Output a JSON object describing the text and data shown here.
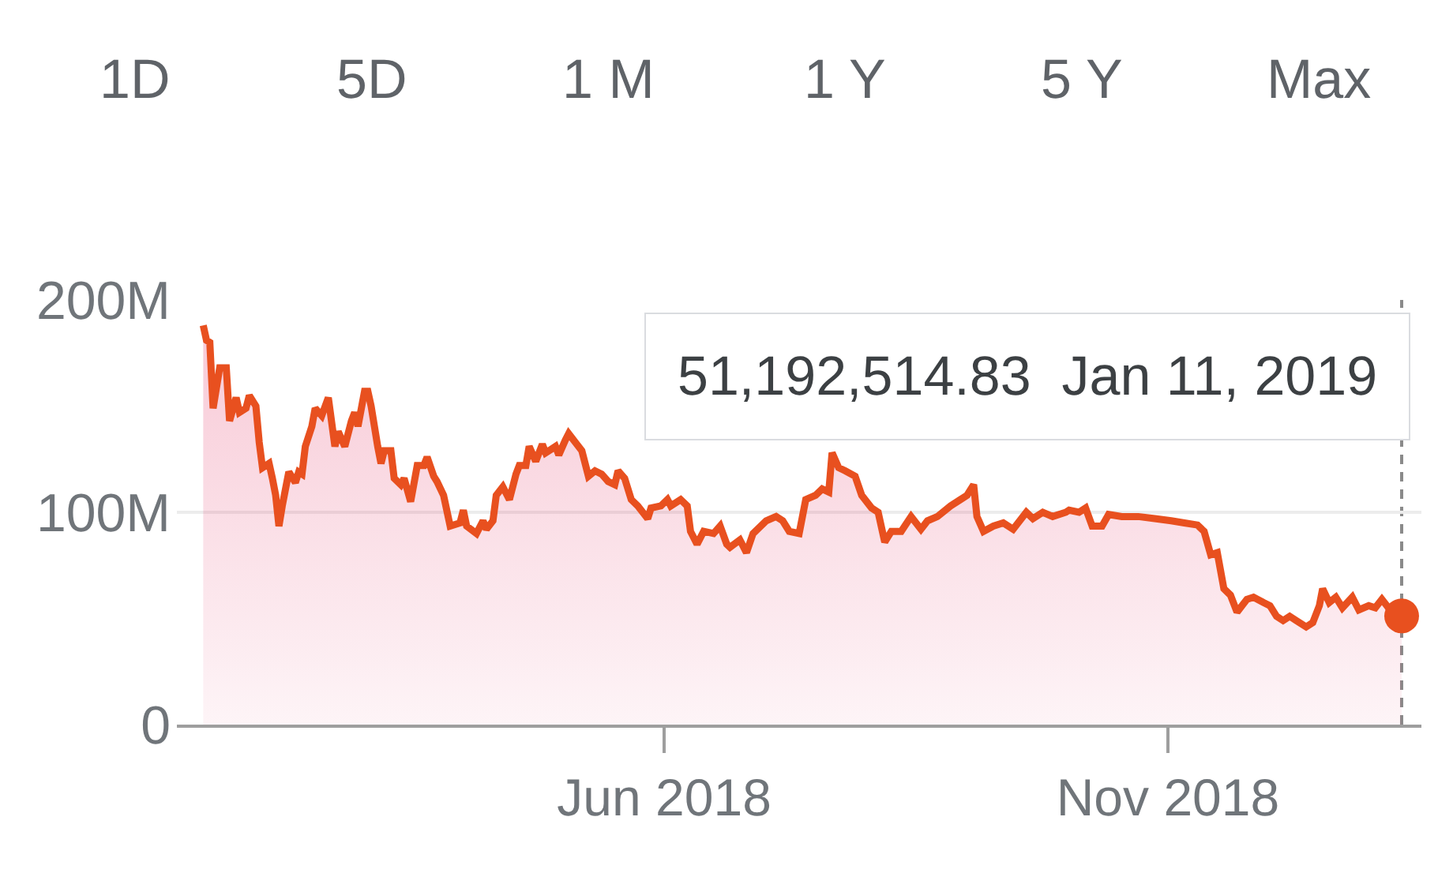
{
  "chart_data": {
    "type": "area",
    "x": [
      "2018-01-12",
      "2018-01-13",
      "2018-01-14",
      "2018-01-15",
      "2018-01-17",
      "2018-01-19",
      "2018-01-20",
      "2018-01-22",
      "2018-01-23",
      "2018-01-25",
      "2018-01-26",
      "2018-01-28",
      "2018-01-29",
      "2018-01-30",
      "2018-02-01",
      "2018-02-02",
      "2018-02-03",
      "2018-02-04",
      "2018-02-05",
      "2018-02-06",
      "2018-02-07",
      "2018-02-09",
      "2018-02-10",
      "2018-02-11",
      "2018-02-12",
      "2018-02-14",
      "2018-02-15",
      "2018-02-17",
      "2018-02-19",
      "2018-02-21",
      "2018-02-22",
      "2018-02-24",
      "2018-02-26",
      "2018-02-27",
      "2018-02-28",
      "2018-03-02",
      "2018-03-03",
      "2018-03-04",
      "2018-03-06",
      "2018-03-07",
      "2018-03-08",
      "2018-03-10",
      "2018-03-11",
      "2018-03-13",
      "2018-03-14",
      "2018-03-16",
      "2018-03-18",
      "2018-03-20",
      "2018-03-21",
      "2018-03-23",
      "2018-03-24",
      "2018-03-26",
      "2018-03-28",
      "2018-03-31",
      "2018-04-01",
      "2018-04-02",
      "2018-04-05",
      "2018-04-07",
      "2018-04-08",
      "2018-04-10",
      "2018-04-11",
      "2018-04-13",
      "2018-04-15",
      "2018-04-17",
      "2018-04-18",
      "2018-04-20",
      "2018-04-21",
      "2018-04-23",
      "2018-04-25",
      "2018-04-26",
      "2018-04-29",
      "2018-04-30",
      "2018-05-02",
      "2018-05-03",
      "2018-05-05",
      "2018-05-07",
      "2018-05-09",
      "2018-05-11",
      "2018-05-13",
      "2018-05-15",
      "2018-05-17",
      "2018-05-18",
      "2018-05-20",
      "2018-05-22",
      "2018-05-24",
      "2018-05-27",
      "2018-05-28",
      "2018-05-31",
      "2018-06-02",
      "2018-06-03",
      "2018-06-06",
      "2018-06-08",
      "2018-06-09",
      "2018-06-11",
      "2018-06-13",
      "2018-06-16",
      "2018-06-18",
      "2018-06-20",
      "2018-06-21",
      "2018-06-24",
      "2018-06-26",
      "2018-06-28",
      "2018-07-02",
      "2018-07-05",
      "2018-07-07",
      "2018-07-09",
      "2018-07-12",
      "2018-07-14",
      "2018-07-17",
      "2018-07-19",
      "2018-07-21",
      "2018-07-22",
      "2018-07-24",
      "2018-07-26",
      "2018-07-29",
      "2018-07-31",
      "2018-08-03",
      "2018-08-05",
      "2018-08-07",
      "2018-08-09",
      "2018-08-12",
      "2018-08-15",
      "2018-08-18",
      "2018-08-20",
      "2018-08-23",
      "2018-08-27",
      "2018-08-30",
      "2018-09-01",
      "2018-09-03",
      "2018-09-04",
      "2018-09-06",
      "2018-09-09",
      "2018-09-12",
      "2018-09-15",
      "2018-09-19",
      "2018-09-21",
      "2018-09-24",
      "2018-09-27",
      "2018-10-01",
      "2018-10-02",
      "2018-10-05",
      "2018-10-07",
      "2018-10-09",
      "2018-10-12",
      "2018-10-14",
      "2018-10-18",
      "2018-10-23",
      "2018-10-28",
      "2018-11-02",
      "2018-11-06",
      "2018-11-10",
      "2018-11-12",
      "2018-11-14",
      "2018-11-16",
      "2018-11-18",
      "2018-11-20",
      "2018-11-22",
      "2018-11-25",
      "2018-11-27",
      "2018-11-30",
      "2018-12-02",
      "2018-12-04",
      "2018-12-06",
      "2018-12-08",
      "2018-12-10",
      "2018-12-13",
      "2018-12-15",
      "2018-12-17",
      "2018-12-18",
      "2018-12-20",
      "2018-12-22",
      "2018-12-24",
      "2018-12-27",
      "2018-12-29",
      "2019-01-01",
      "2019-01-03",
      "2019-01-05",
      "2019-01-07",
      "2019-01-11"
    ],
    "series": [
      {
        "color": "#e8501f",
        "values": [
          188000000,
          181000000,
          180000000,
          149000000,
          168000000,
          168000000,
          143000000,
          154000000,
          147000000,
          149000000,
          155000000,
          150000000,
          133000000,
          121000000,
          123000000,
          116000000,
          108000000,
          93500000,
          103000000,
          111000000,
          119000000,
          114000000,
          119000000,
          118000000,
          131000000,
          140500000,
          149000000,
          145500000,
          154000000,
          131000000,
          138000000,
          131000000,
          143000000,
          147000000,
          140500000,
          157000000,
          157000000,
          150000000,
          131000000,
          123000000,
          129000000,
          129000000,
          116000000,
          113000000,
          116000000,
          105000000,
          122000000,
          122000000,
          126000000,
          117000000,
          114500000,
          108000000,
          93500000,
          95000000,
          101000000,
          93500000,
          90000000,
          96000000,
          92000000,
          96000000,
          108000000,
          112000000,
          106000000,
          118000000,
          122000000,
          122000000,
          131000000,
          124000000,
          132000000,
          128000000,
          131000000,
          127000000,
          134000000,
          137000000,
          133000000,
          129000000,
          117000000,
          119500000,
          118000000,
          114500000,
          113000000,
          119500000,
          116000000,
          106000000,
          103000000,
          97000000,
          102000000,
          103000000,
          106000000,
          103000000,
          106000000,
          103000000,
          91000000,
          85000000,
          91000000,
          90000000,
          93500000,
          85000000,
          83500000,
          87000000,
          81000000,
          90000000,
          96000000,
          98000000,
          96000000,
          91000000,
          90000000,
          106000000,
          108000000,
          111000000,
          109500000,
          128000000,
          121000000,
          119500000,
          117000000,
          108000000,
          102000000,
          100000000,
          86000000,
          91000000,
          91000000,
          98000000,
          92000000,
          96000000,
          98000000,
          103000000,
          106000000,
          108000000,
          113000000,
          98000000,
          91000000,
          93500000,
          95000000,
          92000000,
          100000000,
          97000000,
          100000000,
          98000000,
          100000000,
          101000000,
          100000000,
          102000000,
          93500000,
          93500000,
          99000000,
          98000000,
          98000000,
          97000000,
          96000000,
          95000000,
          94000000,
          91000000,
          80000000,
          81000000,
          64000000,
          61000000,
          53000000,
          59000000,
          60000000,
          57500000,
          56000000,
          51000000,
          49000000,
          51000000,
          49000000,
          46000000,
          48000000,
          56000000,
          64000000,
          57500000,
          60000000,
          55000000,
          60000000,
          54000000,
          56000000,
          55000000,
          59000000,
          55000000,
          51192514.83
        ]
      },
      {
        "type": "scatter",
        "marker": "circle",
        "color": "#e8501f",
        "x": [
          "2019-01-11"
        ],
        "values": [
          51192514.83
        ]
      }
    ],
    "xlim": [
      "2018-01-04",
      "2019-01-17"
    ],
    "xticks": [
      {
        "value": "2018-06-01",
        "label": "Jun 2018"
      },
      {
        "value": "2018-11-01",
        "label": "Nov 2018"
      }
    ],
    "ylim": [
      0,
      200000000
    ],
    "yticks": [
      0,
      {
        "value": 100000000,
        "label": "100M"
      },
      {
        "value": 200000000,
        "label": "200M"
      }
    ],
    "grid": "y",
    "ref_lines": [
      {
        "axis": "x",
        "value": "2019-01-11",
        "color": "#8a8a8a",
        "line_style": "dashed"
      }
    ],
    "annotations": [
      "1D",
      "5D",
      "1 M",
      "1 Y",
      "5 Y",
      "Max",
      {
        "text": "51,192,514.83  Jan 11, 2019",
        "x": "2019-01-11"
      }
    ]
  }
}
